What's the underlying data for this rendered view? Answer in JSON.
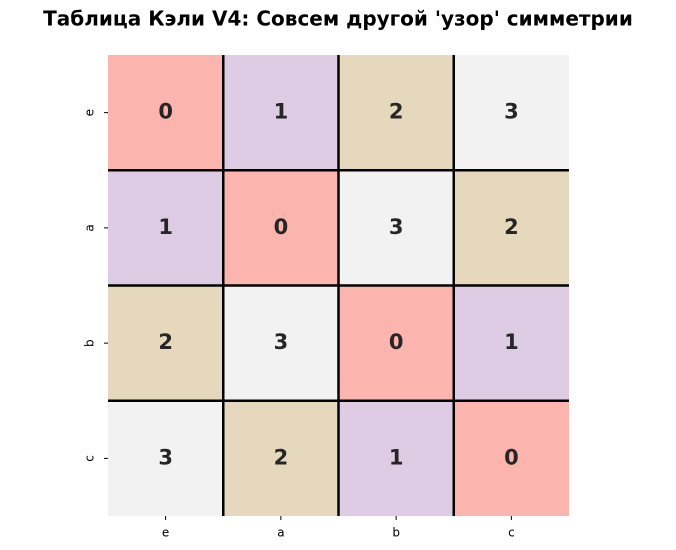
{
  "chart_data": {
    "type": "heatmap",
    "title": "Таблица Кэли V4: Совсем другой 'узор' симметрии",
    "x_categories": [
      "e",
      "a",
      "b",
      "c"
    ],
    "y_categories": [
      "e",
      "a",
      "b",
      "c"
    ],
    "values": [
      [
        0,
        1,
        2,
        3
      ],
      [
        1,
        0,
        3,
        2
      ],
      [
        2,
        3,
        0,
        1
      ],
      [
        3,
        2,
        1,
        0
      ]
    ],
    "colors": [
      "#fbb4ae",
      "#decbe4",
      "#e5d8bd",
      "#f2f2f2"
    ]
  }
}
